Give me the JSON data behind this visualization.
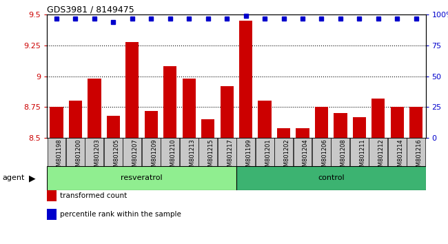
{
  "title": "GDS3981 / 8149475",
  "samples": [
    "GSM801198",
    "GSM801200",
    "GSM801203",
    "GSM801205",
    "GSM801207",
    "GSM801209",
    "GSM801210",
    "GSM801213",
    "GSM801215",
    "GSM801217",
    "GSM801199",
    "GSM801201",
    "GSM801202",
    "GSM801204",
    "GSM801206",
    "GSM801208",
    "GSM801211",
    "GSM801212",
    "GSM801214",
    "GSM801216"
  ],
  "bar_values": [
    8.75,
    8.8,
    8.98,
    8.68,
    9.28,
    8.72,
    9.08,
    8.98,
    8.65,
    8.92,
    9.45,
    8.8,
    8.58,
    8.58,
    8.75,
    8.7,
    8.67,
    8.82,
    8.75,
    8.75
  ],
  "percentile_values": [
    97,
    97,
    97,
    94,
    97,
    97,
    97,
    97,
    97,
    97,
    99,
    97,
    97,
    97,
    97,
    97,
    97,
    97,
    97,
    97
  ],
  "groups": [
    {
      "label": "resveratrol",
      "start": 0,
      "end": 10,
      "color": "#90EE90"
    },
    {
      "label": "control",
      "start": 10,
      "end": 20,
      "color": "#3CB371"
    }
  ],
  "bar_color": "#CC0000",
  "dot_color": "#0000CC",
  "ylim_left": [
    8.5,
    9.5
  ],
  "ylim_right": [
    0,
    100
  ],
  "yticks_left": [
    8.5,
    8.75,
    9.0,
    9.25,
    9.5
  ],
  "yticks_right": [
    0,
    25,
    50,
    75,
    100
  ],
  "ytick_labels_left": [
    "8.5",
    "8.75",
    "9",
    "9.25",
    "9.5"
  ],
  "ytick_labels_right": [
    "0",
    "25",
    "50",
    "75",
    "100%"
  ],
  "grid_values": [
    8.75,
    9.0,
    9.25
  ],
  "agent_label": "agent",
  "legend": [
    {
      "color": "#CC0000",
      "label": "transformed count"
    },
    {
      "color": "#0000CC",
      "label": "percentile rank within the sample"
    }
  ],
  "bar_width": 0.7,
  "xtick_box_color": "#C8C8C8",
  "group_border_color": "#000000",
  "resveratrol_color": "#90EE90",
  "control_color": "#32CD32"
}
